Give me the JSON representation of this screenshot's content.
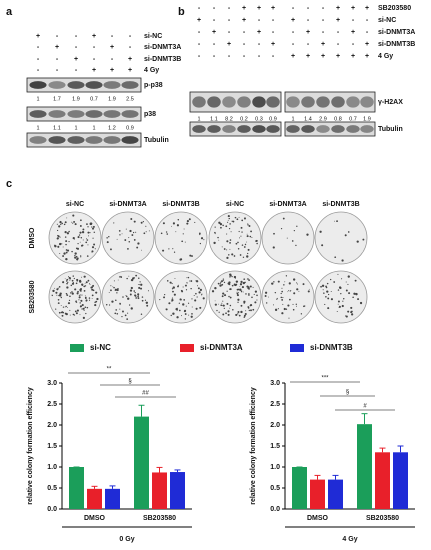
{
  "panel_a": {
    "label": "a",
    "conditions": [
      {
        "name": "si-NC",
        "signs": [
          "+",
          "-",
          "-",
          "+",
          "-",
          "-"
        ]
      },
      {
        "name": "si-DNMT3A",
        "signs": [
          "-",
          "+",
          "-",
          "-",
          "+",
          "-"
        ]
      },
      {
        "name": "si-DNMT3B",
        "signs": [
          "-",
          "-",
          "+",
          "-",
          "-",
          "+"
        ]
      },
      {
        "name": "4 Gy",
        "signs": [
          "-",
          "-",
          "-",
          "+",
          "+",
          "+"
        ]
      }
    ],
    "blots": [
      {
        "name": "p-p38",
        "quant": [
          "1",
          "1.7",
          "1.9",
          "0.7",
          "1.9",
          "2.5"
        ]
      },
      {
        "name": "p38",
        "quant": [
          "1",
          "1.1",
          "1",
          "1",
          "1.2",
          "0.9"
        ]
      },
      {
        "name": "Tubulin"
      }
    ]
  },
  "panel_b": {
    "label": "b",
    "conditions": [
      {
        "name": "SB203580",
        "signs": [
          "-",
          "-",
          "-",
          "+",
          "+",
          "+",
          "-",
          "-",
          "-",
          "+",
          "+",
          "+"
        ]
      },
      {
        "name": "si-NC",
        "signs": [
          "+",
          "-",
          "-",
          "+",
          "-",
          "-",
          "+",
          "-",
          "-",
          "+",
          "-",
          "-"
        ]
      },
      {
        "name": "si-DNMT3A",
        "signs": [
          "-",
          "+",
          "-",
          "-",
          "+",
          "-",
          "-",
          "+",
          "-",
          "-",
          "+",
          "-"
        ]
      },
      {
        "name": "si-DNMT3B",
        "signs": [
          "-",
          "-",
          "+",
          "-",
          "-",
          "+",
          "-",
          "-",
          "+",
          "-",
          "-",
          "+"
        ]
      },
      {
        "name": "4 Gy",
        "signs": [
          "-",
          "-",
          "-",
          "-",
          "-",
          "-",
          "+",
          "+",
          "+",
          "+",
          "+",
          "+"
        ]
      }
    ],
    "blots": [
      {
        "name": "γ-H2AX",
        "quant": [
          "1",
          "1.1",
          "8.2",
          "0.2",
          "0.3",
          "0.9",
          "1",
          "1.4",
          "2.9",
          "0.8",
          "0.7",
          "1.9"
        ]
      },
      {
        "name": "Tubulin"
      }
    ]
  },
  "panel_c": {
    "label": "c",
    "columns": [
      "si-NC",
      "si-DNMT3A",
      "si-DNMT3B",
      "si-NC",
      "si-DNMT3A",
      "si-DNMT3B"
    ],
    "rows": [
      "DMSO",
      "SB203580"
    ]
  },
  "chart_data": [
    {
      "type": "bar",
      "ylabel": "relative colony formation efficiency",
      "xlabel": "0 Gy",
      "categories": [
        "DMSO",
        "SB203580"
      ],
      "series": [
        {
          "name": "si-NC",
          "color": "#1b9e5a",
          "values": [
            1.0,
            2.2
          ],
          "errors": [
            0,
            0.27
          ]
        },
        {
          "name": "si-DNMT3A",
          "color": "#e8202a",
          "values": [
            0.48,
            0.87
          ],
          "errors": [
            0.06,
            0.12
          ]
        },
        {
          "name": "si-DNMT3B",
          "color": "#1f2bd6",
          "values": [
            0.48,
            0.88
          ],
          "errors": [
            0.07,
            0.05
          ]
        }
      ],
      "annotations": [
        "**",
        "§",
        "##"
      ],
      "ylim": [
        0,
        3.0
      ],
      "yticks": [
        {
          "value": 0,
          "label": "0.0"
        },
        0.5,
        {
          "value": 1,
          "label": "1.0"
        },
        1.5,
        {
          "value": 2,
          "label": "2.0"
        },
        2.5,
        {
          "value": 3,
          "label": "3.0"
        }
      ]
    },
    {
      "type": "bar",
      "ylabel": "relative colony formation efficiency",
      "xlabel": "4 Gy",
      "categories": [
        "DMSO",
        "SB203580"
      ],
      "series": [
        {
          "color": "#1b9e5a",
          "values": [
            1.0,
            2.02
          ],
          "errors": [
            0,
            0.25
          ]
        },
        {
          "color": "#e8202a",
          "values": [
            0.7,
            1.35
          ],
          "errors": [
            0.1,
            0.1
          ]
        },
        {
          "color": "#1f2bd6",
          "values": [
            0.7,
            1.35
          ],
          "errors": [
            0.1,
            0.15
          ]
        }
      ],
      "annotations": [
        "***",
        "§",
        "#"
      ],
      "ylim": [
        0,
        3.0
      ],
      "yticks": [
        {
          "value": 0,
          "label": "0.0"
        },
        0.5,
        {
          "value": 1,
          "label": "1.0"
        },
        1.5,
        {
          "value": 2,
          "label": "2.0"
        },
        2.5,
        {
          "value": 3,
          "label": "3.0"
        }
      ]
    }
  ]
}
